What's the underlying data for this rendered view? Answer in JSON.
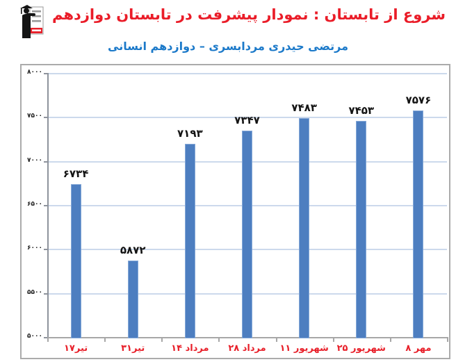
{
  "header": {
    "title": "شروع از تابستان : نمودار پیشرفت در تابستان دوازدهم",
    "subtitle": "مرتضی حیدری مردابسری – دوازدهم انسانی"
  },
  "logo": {
    "name": "graduate-student-logo"
  },
  "colors": {
    "title_red": "#ea1c28",
    "subtitle_blue": "#1b79c9",
    "bar_blue": "#4d7ec0",
    "bar_border": "#86a9d8",
    "gridline_blue": "#ccd9ec",
    "axis_gray": "#a7a7a7",
    "category_label_red": "#e8202a",
    "logo_red": "#e8202a"
  },
  "chart_data": {
    "type": "bar",
    "title": "",
    "xlabel": "",
    "ylabel": "",
    "categories": [
      "۱۷تیر",
      "۳۱تیر",
      "۱۴ مرداد",
      "۲۸ مرداد",
      "۱۱ شهریور",
      "۲۵ شهریور",
      "۸ مهر"
    ],
    "values": [
      6734,
      5872,
      7193,
      7347,
      7483,
      7453,
      7576
    ],
    "value_labels": [
      "۶۷۳۴",
      "۵۸۷۲",
      "۷۱۹۳",
      "۷۳۴۷",
      "۷۴۸۳",
      "۷۴۵۳",
      "۷۵۷۶"
    ],
    "y_ticks": [
      5000,
      5500,
      6000,
      6500,
      7000,
      7500,
      8000
    ],
    "y_tick_labels": [
      "۵۰۰۰",
      "۵۵۰۰",
      "۶۰۰۰",
      "۶۵۰۰",
      "۷۰۰۰",
      "۷۵۰۰",
      "۸۰۰۰"
    ],
    "ylim": [
      5000,
      8000
    ],
    "grid": true,
    "legend": false
  }
}
